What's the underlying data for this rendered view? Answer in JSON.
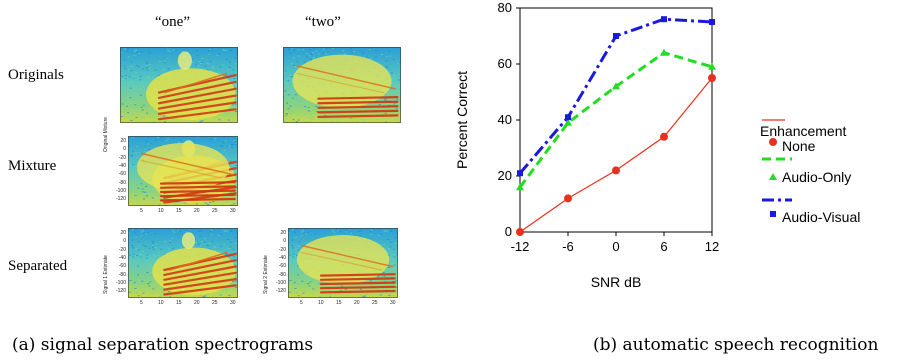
{
  "figure_a": {
    "column_labels": [
      "“one”",
      "“two”"
    ],
    "row_labels": [
      "Originals",
      "Mixture",
      "Separated"
    ],
    "mixture_axis_label": "Original Mixture",
    "separated_axis_label_1": "Signal 1 Estimate",
    "separated_axis_label_2": "Signal 2 Estimate",
    "y_ticks": [
      "20",
      "0",
      "-20",
      "-40",
      "-60",
      "-80",
      "-100",
      "-120"
    ],
    "x_ticks": [
      "5",
      "10",
      "15",
      "20",
      "25",
      "30"
    ],
    "caption": "(a) signal separation spectrograms"
  },
  "figure_b": {
    "caption": "(b) automatic speech recognition",
    "legend_title": "Enhancement"
  },
  "chart_data": {
    "type": "line",
    "title": "",
    "xlabel": "SNR dB",
    "ylabel": "Percent Correct",
    "x": [
      -12,
      -6,
      0,
      6,
      12
    ],
    "xticks": [
      "-12",
      "-6",
      "0",
      "6",
      "12"
    ],
    "yticks": [
      "0",
      "20",
      "40",
      "60",
      "80"
    ],
    "ylim": [
      0,
      80
    ],
    "grid": false,
    "legend_position": "right",
    "series": [
      {
        "name": "None",
        "values": [
          0,
          12,
          22,
          34,
          55
        ],
        "color": "#e8301e",
        "marker": "circle",
        "dash": "solid"
      },
      {
        "name": "Audio-Only",
        "values": [
          16,
          39,
          52,
          64,
          59
        ],
        "color": "#22dd22",
        "marker": "triangle",
        "dash": "dashed"
      },
      {
        "name": "Audio-Visual",
        "values": [
          21,
          41,
          70,
          76,
          75
        ],
        "color": "#1a1adf",
        "marker": "square",
        "dash": "dashdot"
      }
    ]
  }
}
